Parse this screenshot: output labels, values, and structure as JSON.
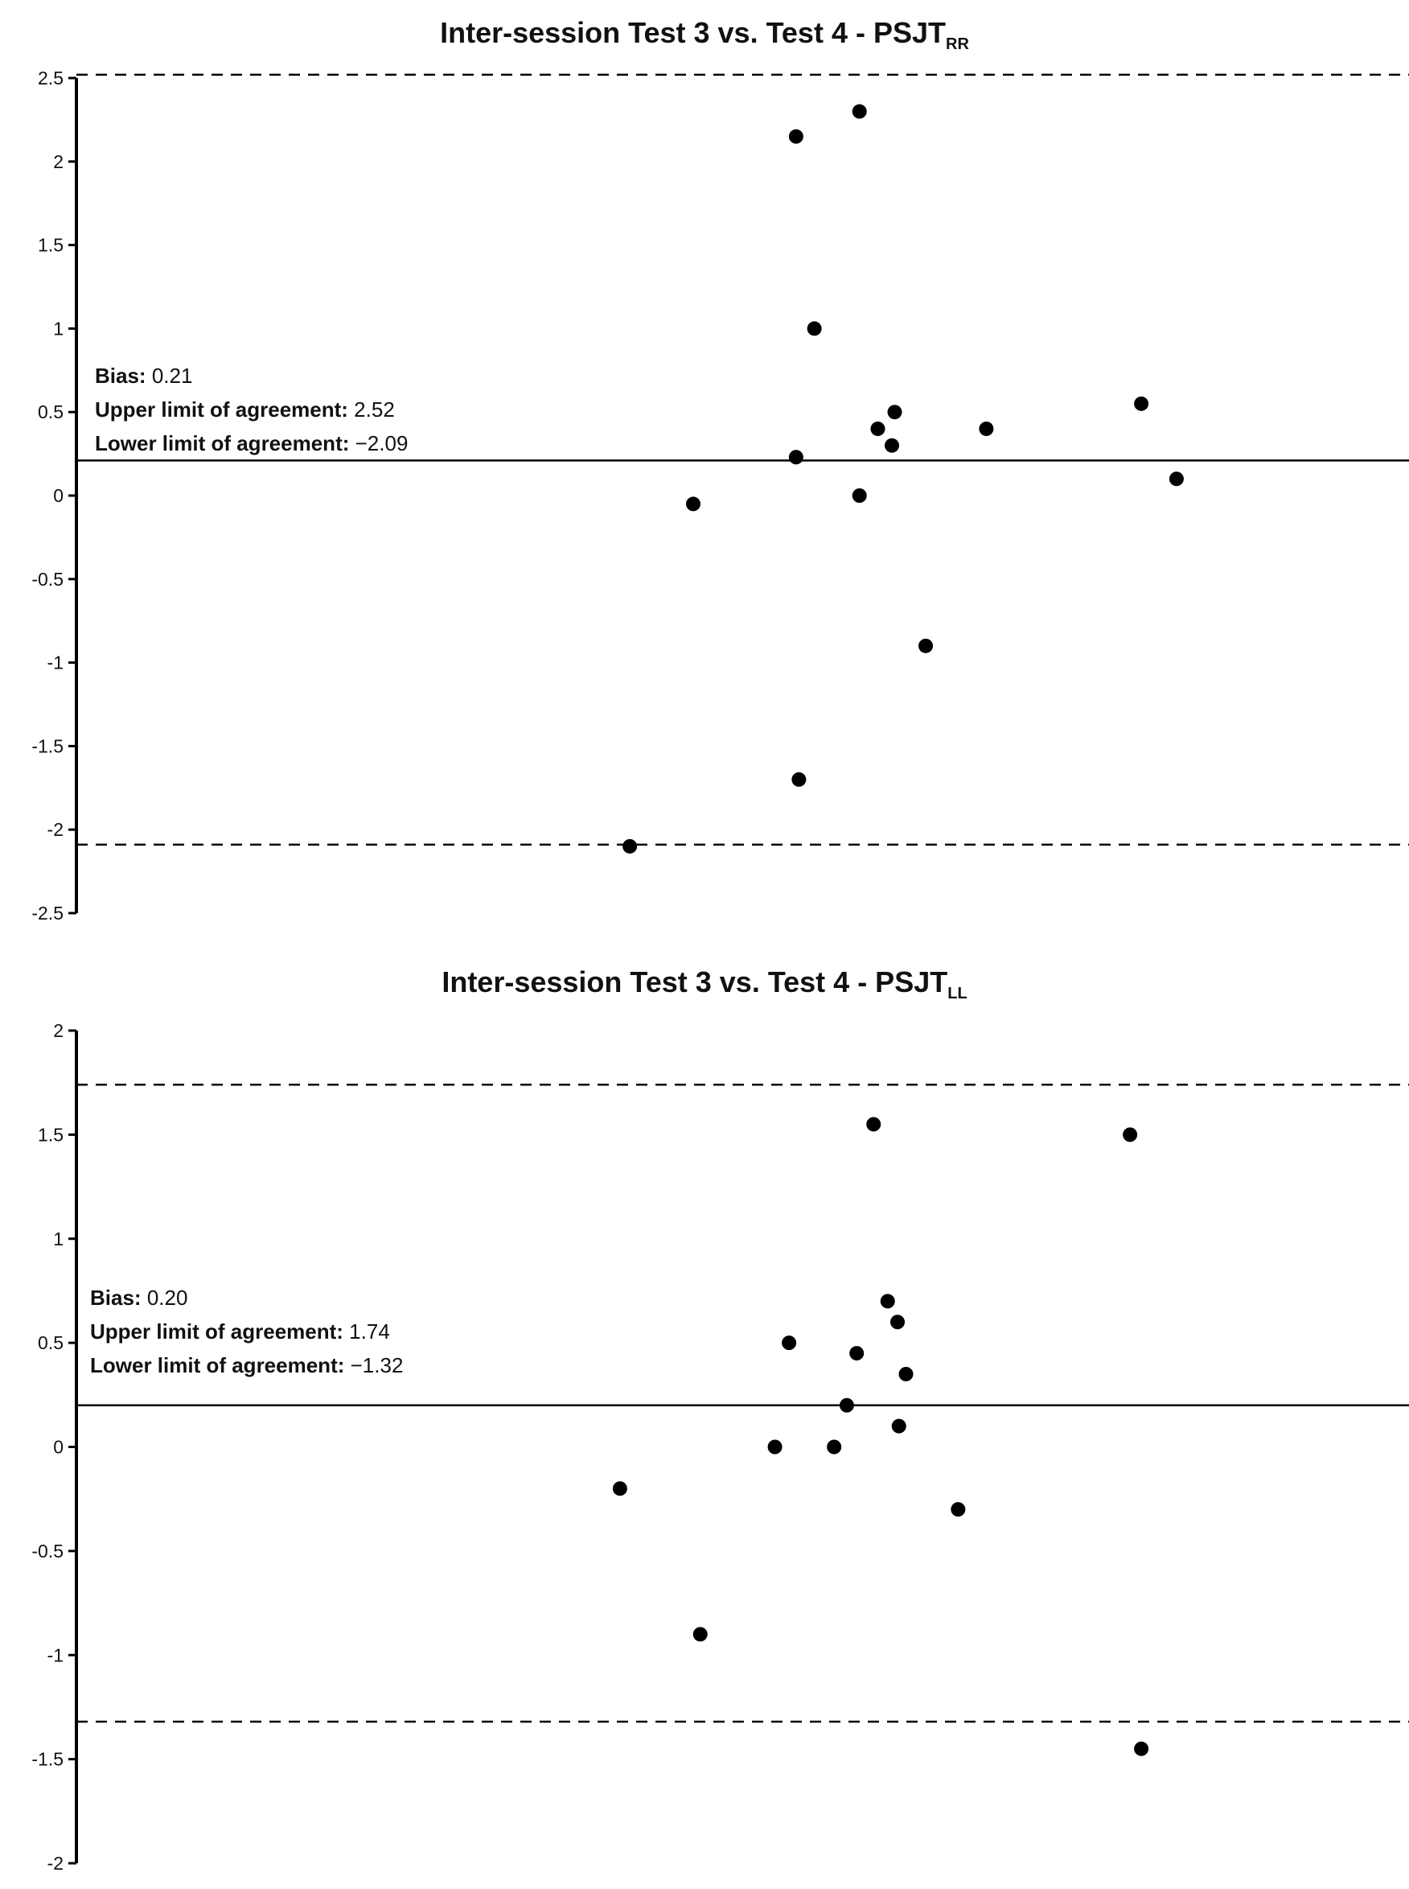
{
  "chart_data": [
    {
      "type": "scatter",
      "title_main": "Inter-session Test 3 vs. Test 4 - PSJT",
      "title_sub": "RR",
      "ylim": [
        -2.5,
        2.5
      ],
      "yticks": [
        "2.5",
        "2",
        "1.5",
        "1",
        "0.5",
        "0",
        "-0.5",
        "-1",
        "-1.5",
        "-2",
        "-2.5"
      ],
      "bias": 0.21,
      "upper_loa": 2.52,
      "lower_loa": -2.09,
      "annotation": {
        "bias_label": "Bias:",
        "bias_value": "0.21",
        "upper_label": "Upper limit of agreement:",
        "upper_value": "2.52",
        "lower_label": "Lower limit of agreement:",
        "lower_value": "−2.09"
      },
      "points": [
        {
          "x": 0.565,
          "y": 2.15
        },
        {
          "x": 0.61,
          "y": 2.3
        },
        {
          "x": 0.578,
          "y": 1.0
        },
        {
          "x": 0.635,
          "y": 0.5
        },
        {
          "x": 0.623,
          "y": 0.4
        },
        {
          "x": 0.7,
          "y": 0.4
        },
        {
          "x": 0.633,
          "y": 0.3
        },
        {
          "x": 0.565,
          "y": 0.23
        },
        {
          "x": 0.81,
          "y": 0.55
        },
        {
          "x": 0.835,
          "y": 0.1
        },
        {
          "x": 0.61,
          "y": 0.0
        },
        {
          "x": 0.492,
          "y": -0.05
        },
        {
          "x": 0.657,
          "y": -0.9
        },
        {
          "x": 0.567,
          "y": -1.7
        },
        {
          "x": 0.447,
          "y": -2.1
        }
      ]
    },
    {
      "type": "scatter",
      "title_main": "Inter-session Test 3 vs. Test 4 - PSJT",
      "title_sub": "LL",
      "ylim": [
        -2,
        2
      ],
      "yticks": [
        "2",
        "1.5",
        "1",
        "0.5",
        "0",
        "-0.5",
        "-1",
        "-1.5",
        "-2"
      ],
      "bias": 0.2,
      "upper_loa": 1.74,
      "lower_loa": -1.32,
      "annotation": {
        "bias_label": "Bias:",
        "bias_value": "0.20",
        "upper_label": "Upper limit of agreement:",
        "upper_value": "1.74",
        "lower_label": "Lower limit of agreement:",
        "lower_value": "−1.32"
      },
      "points": [
        {
          "x": 0.62,
          "y": 1.55
        },
        {
          "x": 0.802,
          "y": 1.5
        },
        {
          "x": 0.63,
          "y": 0.7
        },
        {
          "x": 0.637,
          "y": 0.6
        },
        {
          "x": 0.56,
          "y": 0.5
        },
        {
          "x": 0.608,
          "y": 0.45
        },
        {
          "x": 0.643,
          "y": 0.35
        },
        {
          "x": 0.601,
          "y": 0.2
        },
        {
          "x": 0.638,
          "y": 0.1
        },
        {
          "x": 0.55,
          "y": 0.0
        },
        {
          "x": 0.592,
          "y": 0.0
        },
        {
          "x": 0.44,
          "y": -0.2
        },
        {
          "x": 0.68,
          "y": -0.3
        },
        {
          "x": 0.497,
          "y": -0.9
        },
        {
          "x": 0.81,
          "y": -1.45
        }
      ]
    }
  ]
}
